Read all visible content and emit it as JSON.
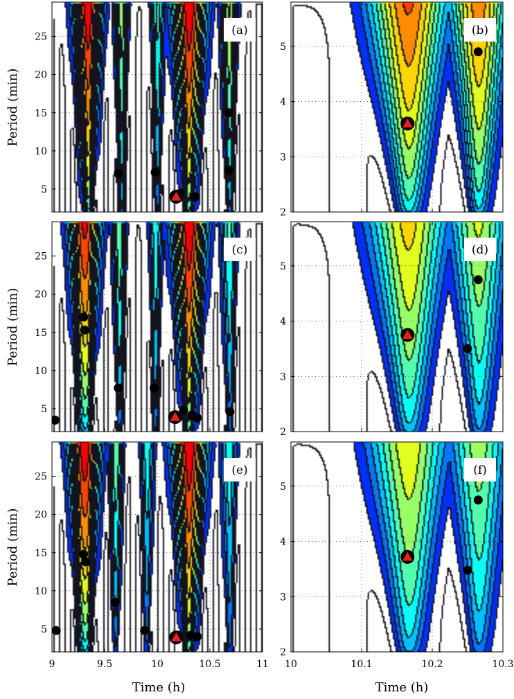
{
  "figure": {
    "ylabel_left": "Period (min)",
    "xlabel_left": "Time (h)",
    "xlabel_right": "Time (h)"
  },
  "chart_data": [
    {
      "type": "heatmap",
      "panel": "(a)",
      "xlim": [
        9,
        11
      ],
      "ylim": [
        2,
        29.5
      ],
      "xticks": [
        9,
        9.5,
        10,
        10.5,
        11
      ],
      "xtick_labels": [
        "9",
        "9.5",
        "10",
        "10.5",
        "11"
      ],
      "yticks": [
        5,
        10,
        15,
        20,
        25
      ],
      "ytick_labels": [
        "5",
        "10",
        "15",
        "20",
        "25"
      ],
      "show_xtick_labels": false,
      "ylabel": "Period (min)",
      "xlabel": "",
      "ridges": [
        {
          "x": 9.33,
          "w": 0.1,
          "amp": 1.0
        },
        {
          "x": 9.65,
          "w": 0.05,
          "amp": 0.55
        },
        {
          "x": 10.0,
          "w": 0.05,
          "amp": 0.45
        },
        {
          "x": 10.3,
          "w": 0.12,
          "amp": 1.0
        },
        {
          "x": 10.68,
          "w": 0.06,
          "amp": 0.6
        }
      ],
      "circles": [
        [
          9.63,
          7
        ],
        [
          9.98,
          7.2
        ],
        [
          10.22,
          4.5
        ],
        [
          10.36,
          4.0
        ],
        [
          10.68,
          15
        ],
        [
          10.68,
          7.5
        ]
      ],
      "triangles": [
        [
          10.18,
          4.0
        ]
      ]
    },
    {
      "type": "heatmap",
      "panel": "(b)",
      "xlim": [
        10,
        10.3
      ],
      "ylim": [
        2,
        5.8
      ],
      "xticks": [
        10,
        10.1,
        10.2,
        10.3
      ],
      "xtick_labels": [
        "10",
        "10.1",
        "10.2",
        "10.3"
      ],
      "yticks": [
        2,
        3,
        4,
        5
      ],
      "ytick_labels": [
        "2",
        "3",
        "4",
        "5"
      ],
      "show_xtick_labels": false,
      "ylabel": "",
      "xlabel": "",
      "ridges": [
        {
          "x": 10.165,
          "w": 0.04,
          "amp": 0.85
        },
        {
          "x": 10.265,
          "w": 0.03,
          "amp": 0.8
        }
      ],
      "circles": [
        [
          10.265,
          4.9
        ]
      ],
      "triangles": [
        [
          10.165,
          3.6
        ]
      ]
    },
    {
      "type": "heatmap",
      "panel": "(c)",
      "xlim": [
        9,
        11
      ],
      "ylim": [
        2,
        29.5
      ],
      "xticks": [
        9,
        9.5,
        10,
        10.5,
        11
      ],
      "xtick_labels": [
        "9",
        "9.5",
        "10",
        "10.5",
        "11"
      ],
      "yticks": [
        5,
        10,
        15,
        20,
        25
      ],
      "ytick_labels": [
        "5",
        "10",
        "15",
        "20",
        "25"
      ],
      "show_xtick_labels": false,
      "ylabel": "Period (min)",
      "xlabel": "",
      "ridges": [
        {
          "x": 9.3,
          "w": 0.11,
          "amp": 0.95
        },
        {
          "x": 9.63,
          "w": 0.05,
          "amp": 0.5
        },
        {
          "x": 9.98,
          "w": 0.05,
          "amp": 0.4
        },
        {
          "x": 10.3,
          "w": 0.12,
          "amp": 1.0
        },
        {
          "x": 10.68,
          "w": 0.06,
          "amp": 0.45
        }
      ],
      "circles": [
        [
          9.3,
          17
        ],
        [
          9.31,
          15.3
        ],
        [
          9.03,
          3.5
        ],
        [
          9.63,
          7.7
        ],
        [
          9.97,
          7.7
        ],
        [
          10.25,
          4.8
        ],
        [
          10.33,
          4.2
        ],
        [
          10.38,
          3.8
        ],
        [
          10.69,
          4.6
        ]
      ],
      "triangles": [
        [
          10.17,
          3.9
        ]
      ]
    },
    {
      "type": "heatmap",
      "panel": "(d)",
      "xlim": [
        10,
        10.3
      ],
      "ylim": [
        2,
        5.8
      ],
      "xticks": [
        10,
        10.1,
        10.2,
        10.3
      ],
      "xtick_labels": [
        "10",
        "10.1",
        "10.2",
        "10.3"
      ],
      "yticks": [
        2,
        3,
        4,
        5
      ],
      "ytick_labels": [
        "2",
        "3",
        "4",
        "5"
      ],
      "show_xtick_labels": false,
      "ylabel": "",
      "xlabel": "",
      "ridges": [
        {
          "x": 10.165,
          "w": 0.04,
          "amp": 0.7
        },
        {
          "x": 10.265,
          "w": 0.03,
          "amp": 0.6
        }
      ],
      "circles": [
        [
          10.265,
          4.75
        ],
        [
          10.25,
          3.5
        ]
      ],
      "triangles": [
        [
          10.165,
          3.75
        ]
      ]
    },
    {
      "type": "heatmap",
      "panel": "(e)",
      "xlim": [
        9,
        11
      ],
      "ylim": [
        2,
        29.5
      ],
      "xticks": [
        9,
        9.5,
        10,
        10.5,
        11
      ],
      "xtick_labels": [
        "9",
        "9.5",
        "10",
        "10.5",
        "11"
      ],
      "yticks": [
        5,
        10,
        15,
        20,
        25
      ],
      "ytick_labels": [
        "5",
        "10",
        "15",
        "20",
        "25"
      ],
      "show_xtick_labels": true,
      "ylabel": "Period (min)",
      "xlabel": "Time (h)",
      "ridges": [
        {
          "x": 9.3,
          "w": 0.11,
          "amp": 1.0
        },
        {
          "x": 9.6,
          "w": 0.05,
          "amp": 0.5
        },
        {
          "x": 9.9,
          "w": 0.05,
          "amp": 0.4
        },
        {
          "x": 10.3,
          "w": 0.12,
          "amp": 1.0
        },
        {
          "x": 10.68,
          "w": 0.06,
          "amp": 0.4
        }
      ],
      "circles": [
        [
          9.3,
          14.8
        ],
        [
          9.32,
          13.8
        ],
        [
          9.6,
          8.5
        ],
        [
          9.88,
          4.8
        ],
        [
          10.32,
          4.2
        ],
        [
          10.38,
          4.0
        ],
        [
          9.04,
          4.8
        ]
      ],
      "triangles": [
        [
          10.18,
          3.9
        ]
      ]
    },
    {
      "type": "heatmap",
      "panel": "(f)",
      "xlim": [
        10,
        10.3
      ],
      "ylim": [
        2,
        5.8
      ],
      "xticks": [
        10,
        10.1,
        10.2,
        10.3
      ],
      "xtick_labels": [
        "10",
        "10.1",
        "10.2",
        "10.3"
      ],
      "yticks": [
        2,
        3,
        4,
        5
      ],
      "ytick_labels": [
        "2",
        "3",
        "4",
        "5"
      ],
      "show_xtick_labels": true,
      "ylabel": "",
      "xlabel": "Time (h)",
      "ridges": [
        {
          "x": 10.165,
          "w": 0.04,
          "amp": 0.65
        },
        {
          "x": 10.265,
          "w": 0.03,
          "amp": 0.55
        }
      ],
      "circles": [
        [
          10.265,
          4.75
        ],
        [
          10.25,
          3.48
        ]
      ],
      "triangles": [
        [
          10.165,
          3.72
        ]
      ]
    }
  ]
}
